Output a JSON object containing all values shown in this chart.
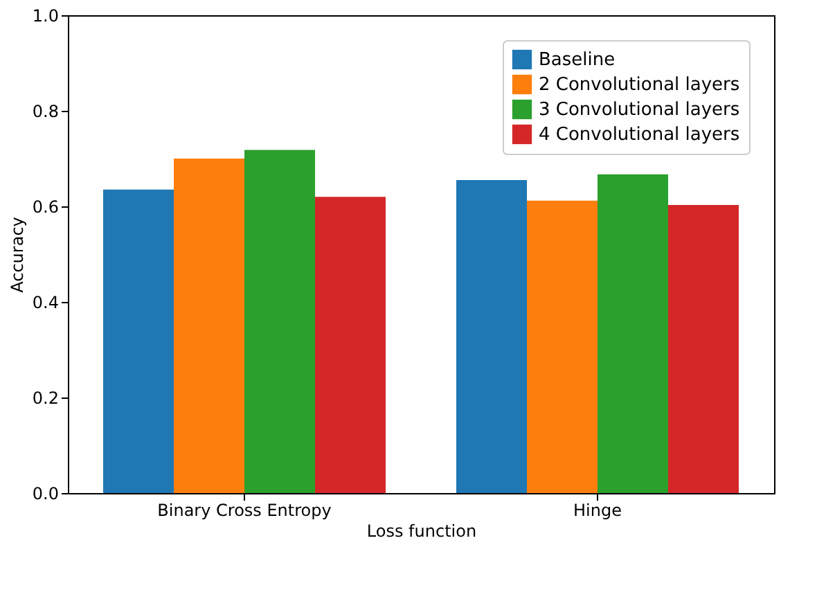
{
  "chart_data": {
    "type": "bar",
    "xlabel": "Loss function",
    "ylabel": "Accuracy",
    "categories": [
      "Binary Cross Entropy",
      "Hinge"
    ],
    "series": [
      {
        "name": "Baseline",
        "color": "#1f77b4",
        "values": [
          0.635,
          0.655
        ]
      },
      {
        "name": "2 Convolutional layers",
        "color": "#ff7f0e",
        "values": [
          0.7,
          0.612
        ]
      },
      {
        "name": "3 Convolutional layers",
        "color": "#2ca02c",
        "values": [
          0.718,
          0.667
        ]
      },
      {
        "name": "4 Convolutional layers",
        "color": "#d62728",
        "values": [
          0.62,
          0.603
        ]
      }
    ],
    "ylim": [
      0,
      1
    ],
    "yticks": [
      {
        "value": 0,
        "label": "0.0"
      },
      {
        "value": 0.2,
        "label": "0.2"
      },
      {
        "value": 0.4,
        "label": "0.4"
      },
      {
        "value": 0.6,
        "label": "0.6"
      },
      {
        "value": 0.8,
        "label": "0.8"
      },
      {
        "value": 1,
        "label": "1.0"
      }
    ],
    "grid": false,
    "legend": "top right"
  }
}
